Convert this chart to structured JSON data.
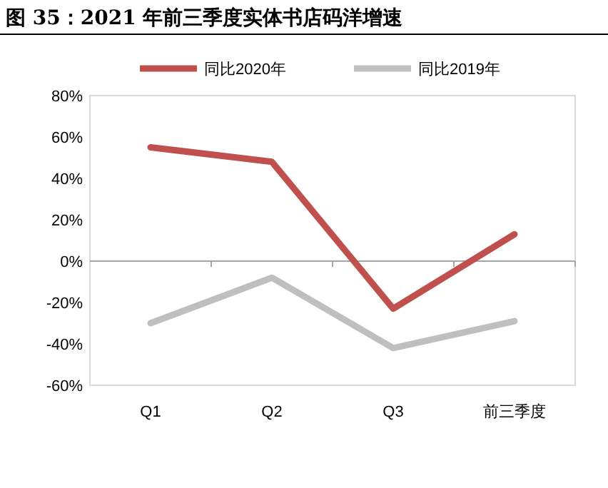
{
  "chart_data": {
    "type": "line",
    "title": "图 35：2021 年前三季度实体书店码洋增速",
    "categories": [
      "Q1",
      "Q2",
      "Q3",
      "前三季度"
    ],
    "series": [
      {
        "name": "同比2020年",
        "color": "#c0504d",
        "values": [
          55,
          48,
          -23,
          13
        ]
      },
      {
        "name": "同比2019年",
        "color": "#bfbfbf",
        "values": [
          -30,
          -8,
          -42,
          -29
        ]
      }
    ],
    "ylim": [
      -60,
      80
    ],
    "yticks": [
      {
        "value": -60,
        "label": "-60%"
      },
      {
        "value": -40,
        "label": "-40%"
      },
      {
        "value": -20,
        "label": "-20%"
      },
      {
        "value": 0,
        "label": "0%"
      },
      {
        "value": 20,
        "label": "20%"
      },
      {
        "value": 40,
        "label": "40%"
      },
      {
        "value": 60,
        "label": "60%"
      },
      {
        "value": 80,
        "label": "80%"
      }
    ],
    "legend": "top",
    "marker": "none",
    "line_style": "solid"
  }
}
